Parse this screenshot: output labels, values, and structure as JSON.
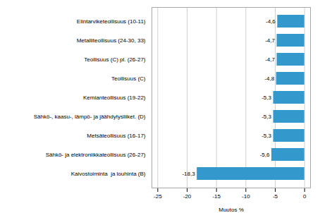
{
  "chart_data": {
    "type": "bar",
    "orientation": "horizontal",
    "categories": [
      "Kaivostoiminta  ja louhinta (B)",
      "Sähkö- ja elektroniikkateollisuus (26-27)",
      "Metsäteollisuus (16-17)",
      "Sähkö-, kaasu-, lämpö- ja jäähdytysliiket. (D)",
      "Kemianteollisuus (19-22)",
      "Teollisuus (C)",
      "Teollisuus (C) pl. (26-27)",
      "Metalliteollisuus (24-30, 33)",
      "Elintarviketeollisuus (10-11)"
    ],
    "values": [
      -18.3,
      -5.6,
      -5.3,
      -5.3,
      -5.3,
      -4.8,
      -4.7,
      -4.7,
      -4.6
    ],
    "value_labels": [
      "-18,3",
      "-5,6",
      "-5,3",
      "-5,3",
      "-5,3",
      "-4,8",
      "-4,7",
      "-4,7",
      "-4,6"
    ],
    "data_labels": true,
    "color": "#3399cc",
    "xlabel": "Muutos %",
    "xlim": [
      -26,
      1
    ],
    "xticks": [
      -25,
      -20,
      -15,
      -10,
      -5,
      0
    ],
    "grid": true
  }
}
